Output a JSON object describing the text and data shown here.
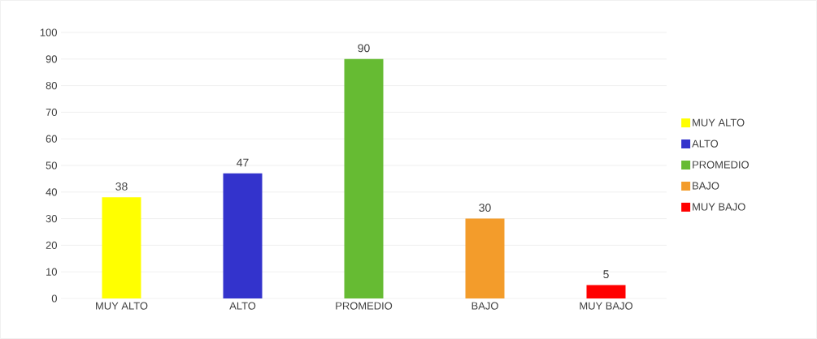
{
  "chart_data": {
    "type": "bar",
    "categories": [
      "MUY ALTO",
      "ALTO",
      "PROMEDIO",
      "BAJO",
      "MUY BAJO"
    ],
    "series": [
      {
        "name": "MUY ALTO",
        "color": "#ffff00",
        "values": [
          38,
          null,
          null,
          null,
          null
        ]
      },
      {
        "name": "ALTO",
        "color": "#3333cc",
        "values": [
          null,
          47,
          null,
          null,
          null
        ]
      },
      {
        "name": "PROMEDIO",
        "color": "#66bb33",
        "values": [
          null,
          null,
          90,
          null,
          null
        ]
      },
      {
        "name": "BAJO",
        "color": "#f39c2b",
        "values": [
          null,
          null,
          null,
          30,
          null
        ]
      },
      {
        "name": "MUY BAJO",
        "color": "#ff0000",
        "values": [
          null,
          null,
          null,
          null,
          5
        ]
      }
    ],
    "ylim": [
      0,
      100
    ],
    "yticks": [
      0,
      10,
      20,
      30,
      40,
      50,
      60,
      70,
      80,
      90,
      100
    ],
    "grid": "y",
    "legend": "right",
    "data_labels": true
  }
}
